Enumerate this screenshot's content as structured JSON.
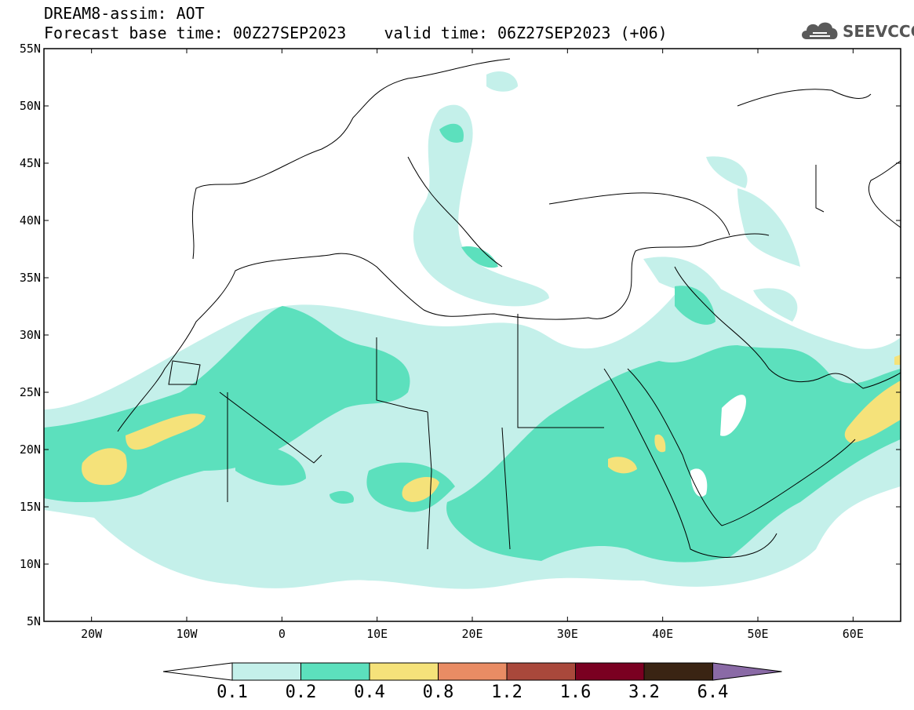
{
  "header": {
    "title": "DREAM8-assim: AOT",
    "base_time": "Forecast base time: 00Z27SEP2023",
    "valid_time": "valid time: 06Z27SEP2023 (+06)"
  },
  "logo": {
    "text": "SEEVCCC",
    "icon": "cloud-logo-icon"
  },
  "map": {
    "projection": "equirectangular",
    "lon_range": [
      -25,
      65
    ],
    "lat_range": [
      5,
      55
    ],
    "lat_ticks": [
      {
        "value": 55,
        "label": "55N"
      },
      {
        "value": 50,
        "label": "50N"
      },
      {
        "value": 45,
        "label": "45N"
      },
      {
        "value": 40,
        "label": "40N"
      },
      {
        "value": 35,
        "label": "35N"
      },
      {
        "value": 30,
        "label": "30N"
      },
      {
        "value": 25,
        "label": "25N"
      },
      {
        "value": 20,
        "label": "20N"
      },
      {
        "value": 15,
        "label": "15N"
      },
      {
        "value": 10,
        "label": "10N"
      },
      {
        "value": 5,
        "label": "5N"
      }
    ],
    "lon_ticks": [
      {
        "value": -20,
        "label": "20W"
      },
      {
        "value": -10,
        "label": "10W"
      },
      {
        "value": 0,
        "label": "0"
      },
      {
        "value": 10,
        "label": "10E"
      },
      {
        "value": 20,
        "label": "20E"
      },
      {
        "value": 30,
        "label": "30E"
      },
      {
        "value": 40,
        "label": "40E"
      },
      {
        "value": 50,
        "label": "50E"
      },
      {
        "value": 60,
        "label": "60E"
      }
    ],
    "colors": {
      "c01": "#c4f0ea",
      "c02": "#5ce0bd",
      "c04": "#f5e27a",
      "c08": "#e98c64",
      "c12": "#a9483b",
      "c16": "#7a0021",
      "c32": "#3a2413",
      "c64": "#8a6aa6"
    }
  },
  "colorbar": {
    "segments": [
      "#c4f0ea",
      "#5ce0bd",
      "#f5e27a",
      "#e98c64",
      "#a9483b",
      "#7a0021",
      "#3a2413"
    ],
    "left_arrow": "#ffffff",
    "right_arrow": "#8a6aa6",
    "labels": [
      "0.1",
      "0.2",
      "0.4",
      "0.8",
      "1.2",
      "1.6",
      "3.2",
      "6.4"
    ]
  }
}
